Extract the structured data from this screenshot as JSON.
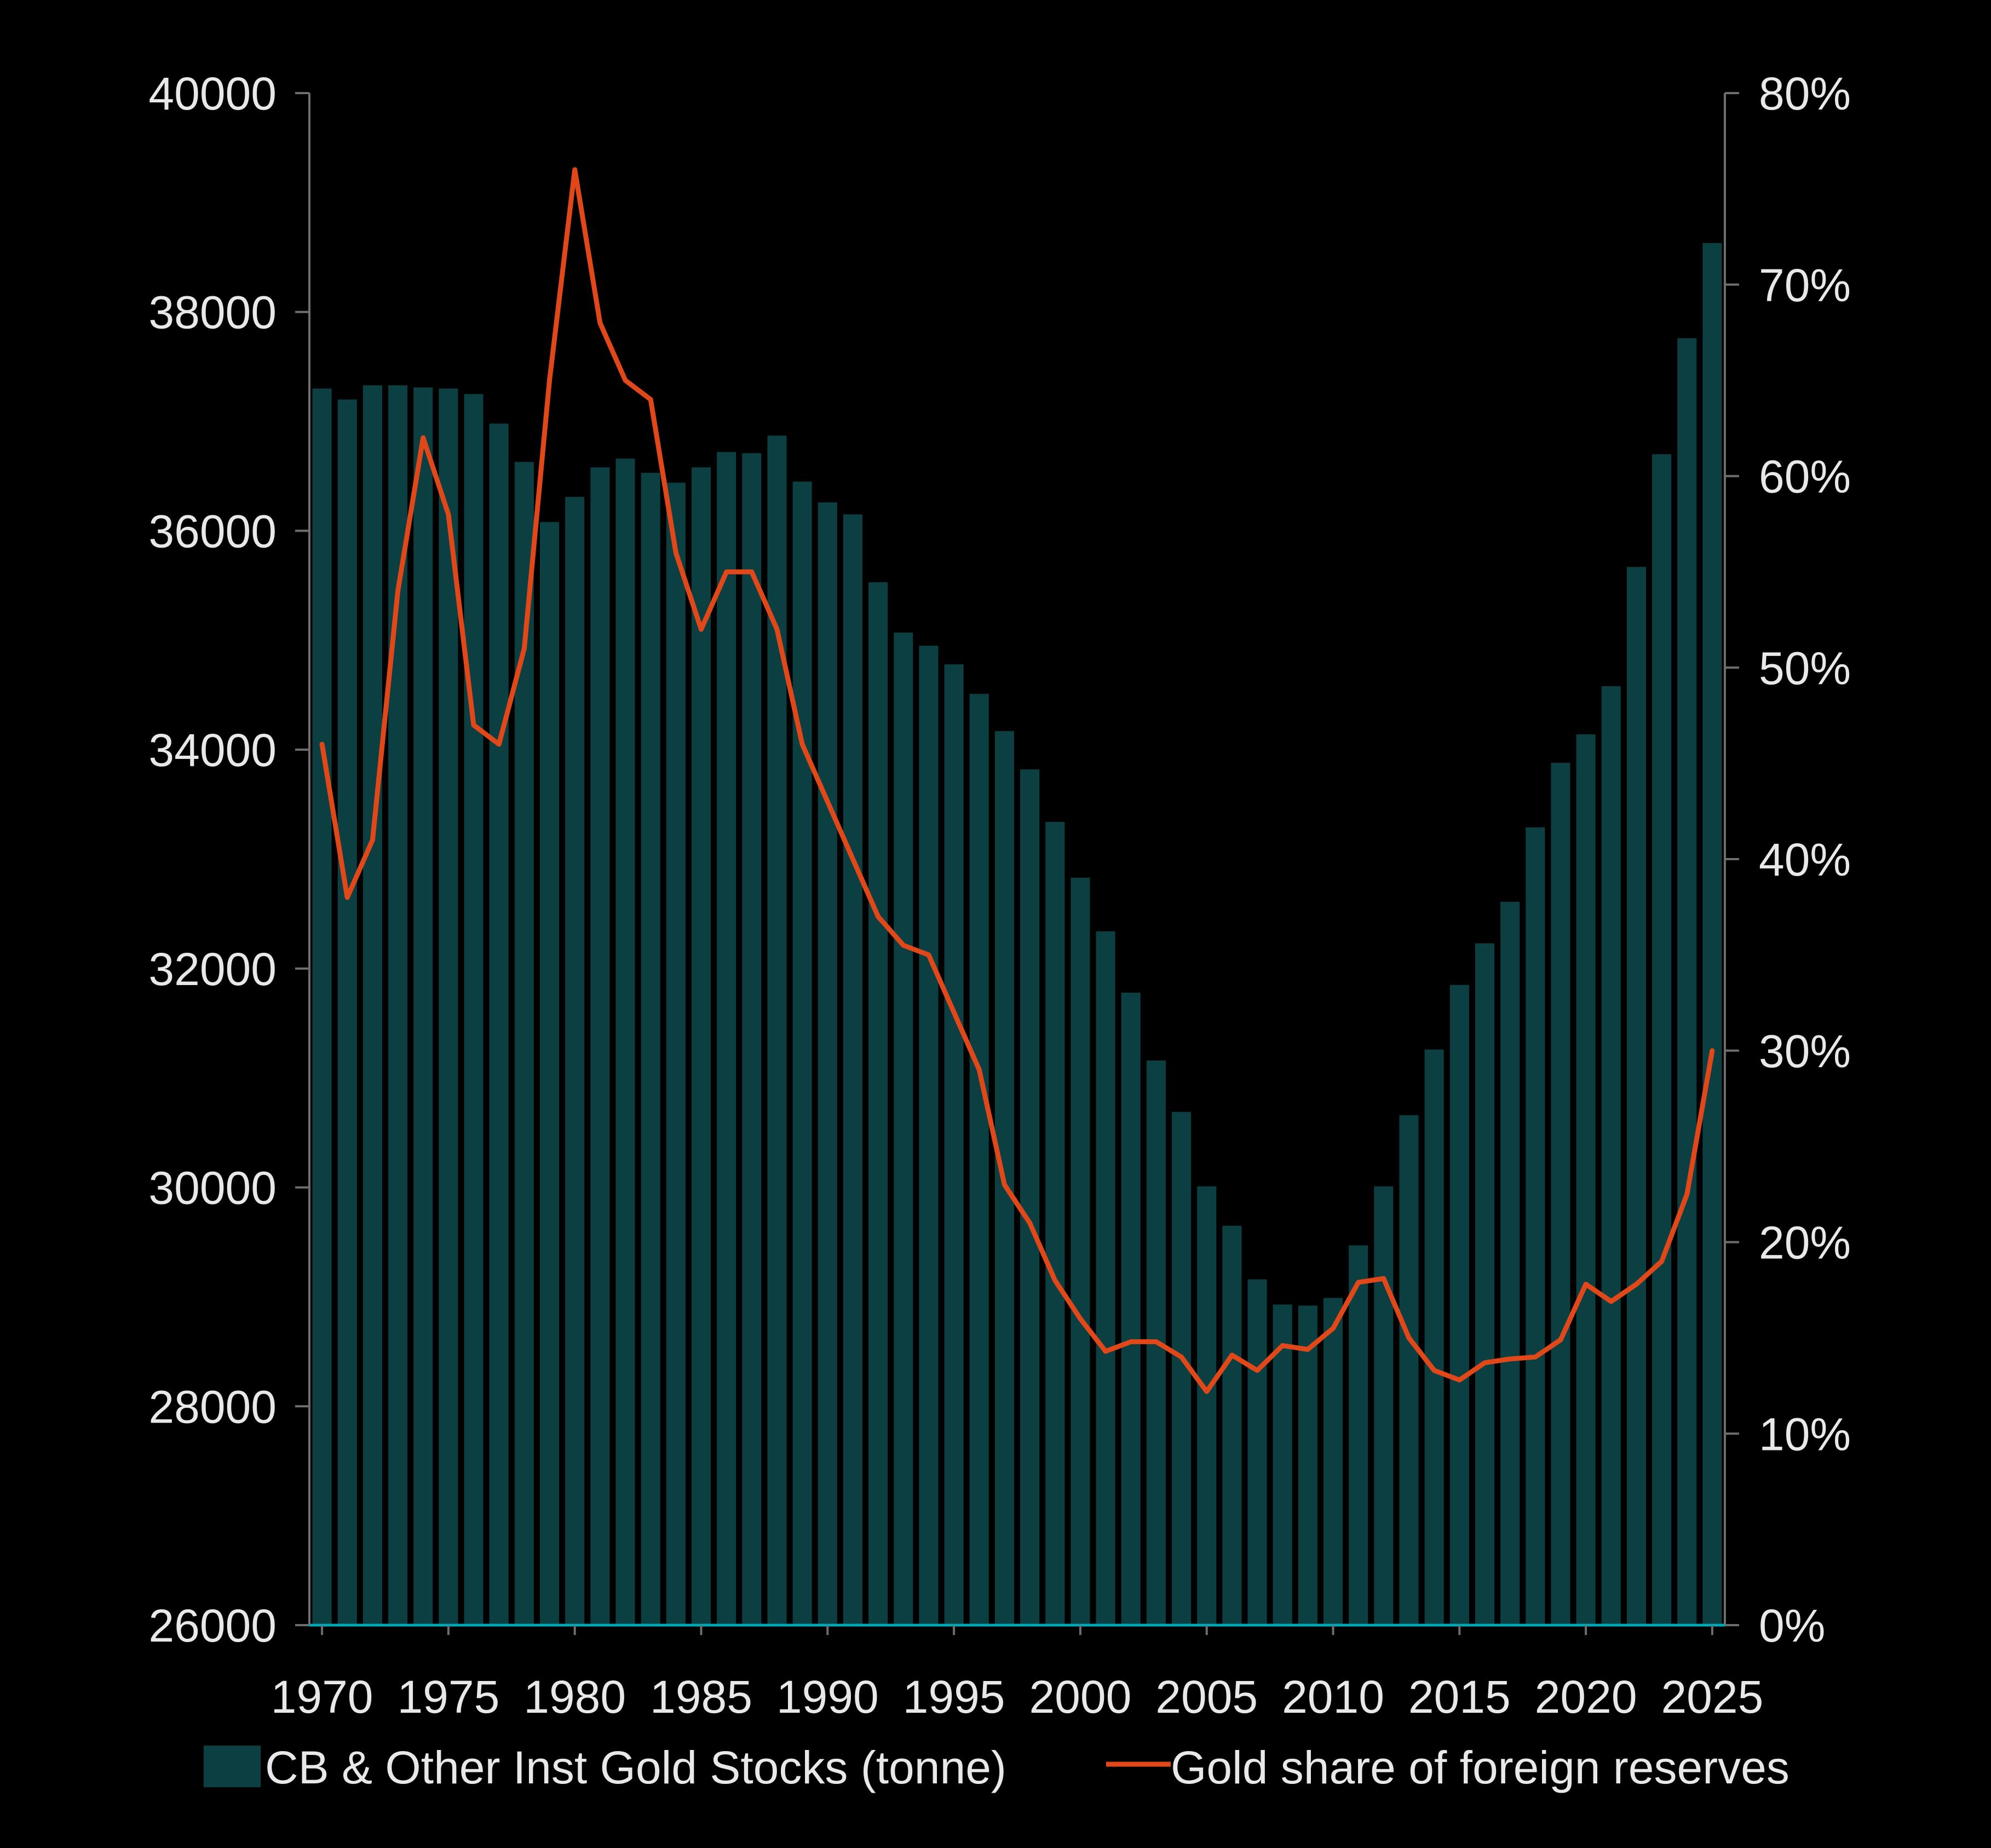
{
  "chart_data": {
    "type": "bar+line",
    "title": "",
    "xlabel": "",
    "x": [
      1970,
      1971,
      1972,
      1973,
      1974,
      1975,
      1976,
      1977,
      1978,
      1979,
      1980,
      1981,
      1982,
      1983,
      1984,
      1985,
      1986,
      1987,
      1988,
      1989,
      1990,
      1991,
      1992,
      1993,
      1994,
      1995,
      1996,
      1997,
      1998,
      1999,
      2000,
      2001,
      2002,
      2003,
      2004,
      2005,
      2006,
      2007,
      2008,
      2009,
      2010,
      2011,
      2012,
      2013,
      2014,
      2015,
      2016,
      2017,
      2018,
      2019,
      2020,
      2021,
      2022,
      2023,
      2024,
      2025
    ],
    "x_tick_labels": [
      "1970",
      "1975",
      "1980",
      "1985",
      "1990",
      "1995",
      "2000",
      "2005",
      "2010",
      "2015",
      "2020",
      "2025"
    ],
    "series": [
      {
        "name": "CB & Other Inst Gold Stocks (tonne)",
        "type": "bar",
        "axis": "left",
        "color": "#0b3f41",
        "values": [
          37300,
          37200,
          37330,
          37330,
          37310,
          37300,
          37250,
          36980,
          36630,
          36080,
          36310,
          36580,
          36660,
          36530,
          36440,
          36580,
          36720,
          36710,
          36870,
          36450,
          36260,
          36150,
          35530,
          35070,
          34950,
          34780,
          34510,
          34170,
          33820,
          33340,
          32830,
          32340,
          31780,
          31160,
          30690,
          30010,
          29650,
          29160,
          28930,
          28920,
          28990,
          29470,
          30010,
          30660,
          31260,
          31850,
          32230,
          32610,
          33290,
          33880,
          34140,
          34580,
          35670,
          36700,
          37760,
          38630
        ]
      },
      {
        "name": "Gold share of foreign reserves",
        "type": "line",
        "axis": "right",
        "color": "#e0481a",
        "values": [
          46,
          38,
          41,
          54,
          62,
          58,
          47,
          46,
          51,
          65,
          76,
          68,
          65,
          64,
          56,
          52,
          55,
          55,
          52,
          46,
          43,
          40,
          37,
          35.5,
          35,
          32,
          29,
          23,
          21,
          18,
          16,
          14.3,
          14.8,
          14.8,
          14,
          12.2,
          14.1,
          13.3,
          14.6,
          14.4,
          15.5,
          17.9,
          18.1,
          15,
          13.3,
          12.8,
          13.7,
          13.9,
          14,
          14.9,
          17.8,
          16.9,
          17.8,
          19,
          22.5,
          30
        ]
      }
    ],
    "y_left": {
      "label": "",
      "min": 26000,
      "max": 40000,
      "tick_labels": [
        "26000",
        "28000",
        "30000",
        "32000",
        "34000",
        "36000",
        "38000",
        "40000"
      ]
    },
    "y_right": {
      "label": "",
      "min": 0,
      "max": 80,
      "tick_labels": [
        "0%",
        "10%",
        "20%",
        "30%",
        "40%",
        "50%",
        "60%",
        "70%",
        "80%"
      ]
    },
    "grid": false,
    "legend_position": "bottom",
    "legend": [
      {
        "label": "CB & Other Inst Gold Stocks (tonne)",
        "marker": "square",
        "color": "#0b3f41"
      },
      {
        "label": "Gold share of foreign reserves",
        "marker": "line",
        "color": "#e0481a"
      }
    ],
    "colors": {
      "background": "#000000",
      "text": "#e8e8e8",
      "axis": "#6e6e6e",
      "baseline": "#00a7b5"
    }
  }
}
